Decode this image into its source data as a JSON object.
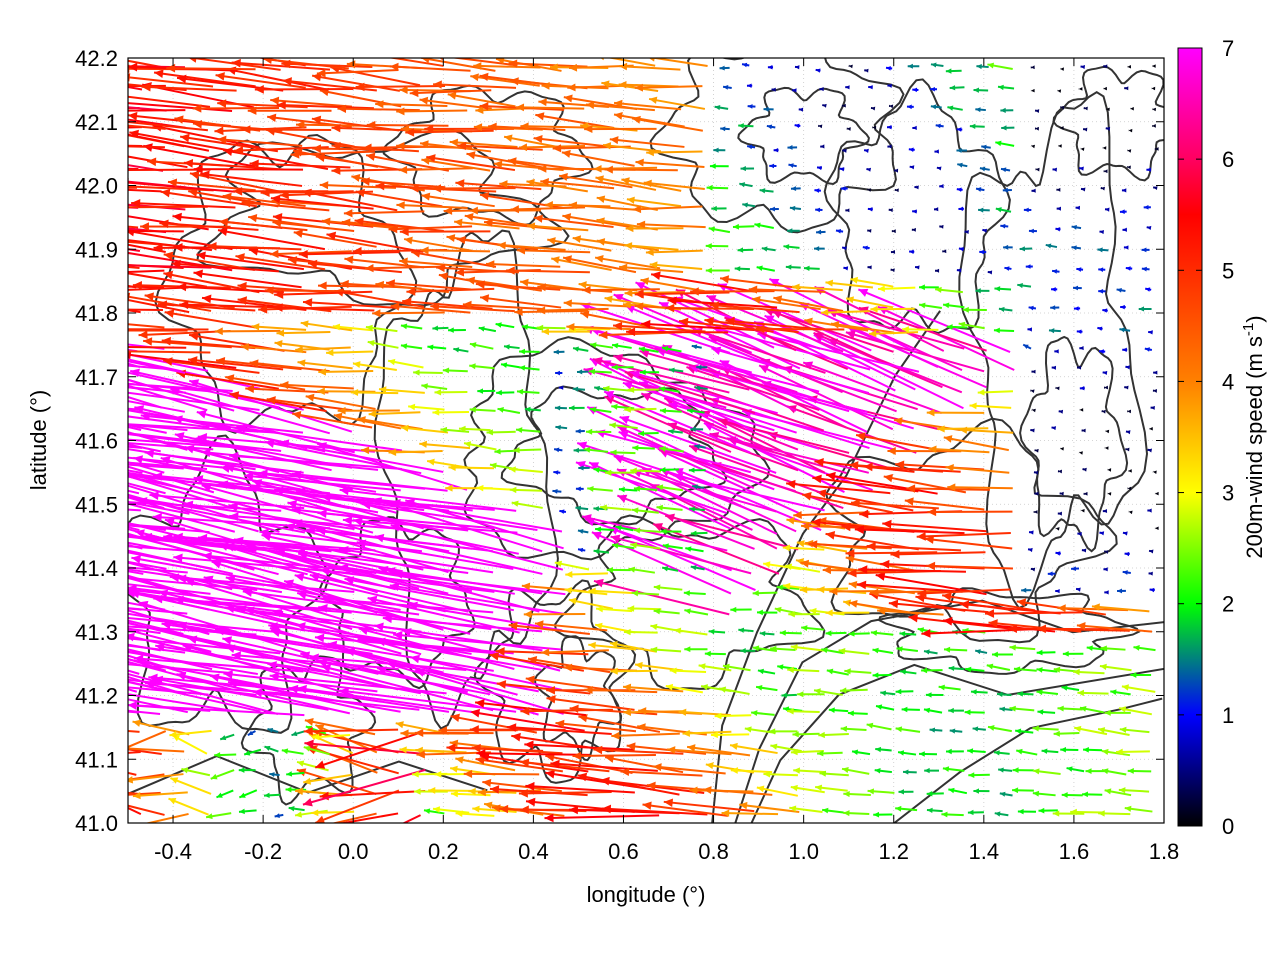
{
  "chart_data": {
    "type": "vector-field",
    "title": "",
    "xlabel": "longitude (°)",
    "ylabel": "latitude (°)",
    "xlim": [
      -0.5,
      1.8
    ],
    "ylim": [
      41.0,
      42.2
    ],
    "xticks": [
      -0.4,
      -0.2,
      0.0,
      0.2,
      0.4,
      0.6,
      0.8,
      1.0,
      1.2,
      1.4,
      1.6,
      1.8
    ],
    "xtick_labels": [
      "-0.4",
      "-0.2",
      "0.0",
      "0.2",
      "0.4",
      "0.6",
      "0.8",
      "1.0",
      "1.2",
      "1.4",
      "1.6",
      "1.8"
    ],
    "yticks": [
      41.0,
      41.1,
      41.2,
      41.3,
      41.4,
      41.5,
      41.6,
      41.7,
      41.8,
      41.9,
      42.0,
      42.1,
      42.2
    ],
    "ytick_labels": [
      "41.0",
      "41.1",
      "41.2",
      "41.3",
      "41.4",
      "41.5",
      "41.6",
      "41.7",
      "41.8",
      "41.9",
      "42.0",
      "42.1",
      "42.2"
    ],
    "grid": true,
    "colorbar": {
      "label_main": "200m-wind speed (m s",
      "label_sup": "-1",
      "label_close": ")",
      "range": [
        0,
        7
      ],
      "ticks": [
        0,
        1,
        2,
        3,
        4,
        5,
        6,
        7
      ],
      "tick_labels": [
        "0",
        "1",
        "2",
        "3",
        "4",
        "5",
        "6",
        "7"
      ],
      "palette": [
        "#000000",
        "#0000ff",
        "#00ff00",
        "#ffff00",
        "#ff8000",
        "#ff0000",
        "#ff00ff"
      ],
      "palette_values": [
        0,
        1,
        2,
        3,
        4,
        5.5,
        6.5
      ]
    },
    "wind_regions": [
      {
        "region": "southwest",
        "x_range": [
          -0.5,
          0.55
        ],
        "y_range": [
          41.15,
          41.7
        ],
        "speed": 7.0,
        "direction": "from east-southeast"
      },
      {
        "region": "northwest",
        "x_range": [
          -0.5,
          0.8
        ],
        "y_range": [
          41.8,
          42.2
        ],
        "speed": 5.5,
        "direction": "from east"
      },
      {
        "region": "north-center",
        "x_range": [
          0.9,
          1.4
        ],
        "y_range": [
          41.9,
          42.2
        ],
        "speed": 1.2,
        "direction": "from east"
      },
      {
        "region": "southeast",
        "x_range": [
          1.0,
          1.8
        ],
        "y_range": [
          41.0,
          41.3
        ],
        "speed": 2.3,
        "direction": "from east"
      },
      {
        "region": "east",
        "x_range": [
          1.5,
          1.8
        ],
        "y_range": [
          41.4,
          42.2
        ],
        "speed": 0.6,
        "direction": "variable"
      }
    ],
    "contours": "terrain elevation contour lines (dark grey)"
  }
}
